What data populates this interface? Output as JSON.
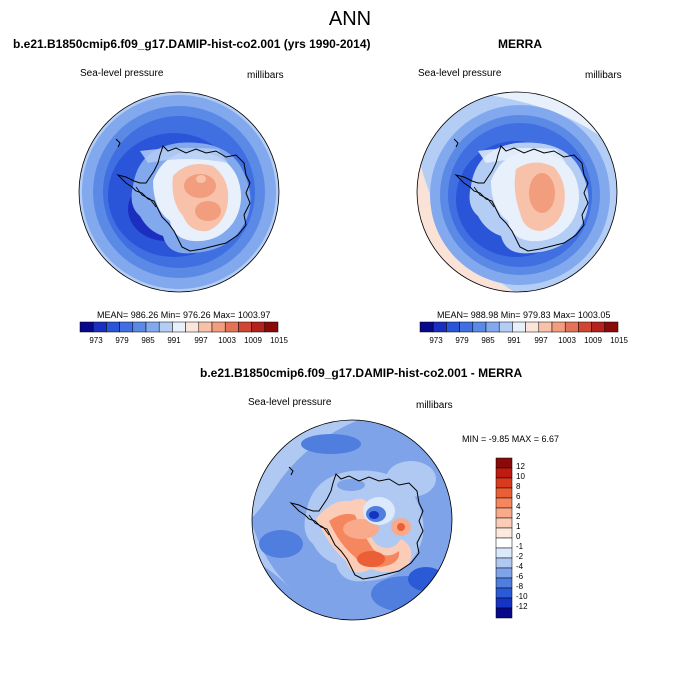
{
  "figure": {
    "title": "ANN"
  },
  "panels": [
    {
      "title": "b.e21.B1850cmip6.f09_g17.DAMIP-hist-co2.001 (yrs 1990-2014)",
      "left_label": "Sea-level pressure",
      "right_label": "millibars",
      "stats": "MEAN= 986.26  Min= 976.26  Max= 1003.97"
    },
    {
      "title": "MERRA",
      "left_label": "Sea-level pressure",
      "right_label": "millibars",
      "stats": "MEAN= 988.98  Min= 979.83  Max= 1003.05"
    },
    {
      "title": "b.e21.B1850cmip6.f09_g17.DAMIP-hist-co2.001 - MERRA",
      "left_label": "Sea-level pressure",
      "right_label": "millibars",
      "stats": "MIN =  -9.85 MAX =   6.67"
    }
  ],
  "colorbar_abs": {
    "colors": [
      "#08088a",
      "#1a2fc0",
      "#2a55d8",
      "#3f6fe0",
      "#5b8ae6",
      "#82a8ee",
      "#b4cdf5",
      "#e8f0fb",
      "#fbe5da",
      "#f8c2aa",
      "#f19d7e",
      "#e47256",
      "#cf4632",
      "#b3231c",
      "#8a0a0a"
    ],
    "tick_labels": [
      "973",
      "979",
      "985",
      "991",
      "997",
      "1003",
      "1009",
      "1015"
    ]
  },
  "colorbar_diff": {
    "colors": [
      "#8a0a0a",
      "#c01b10",
      "#dc3a1f",
      "#ec5e36",
      "#f5865e",
      "#f8aa8a",
      "#fbcdb8",
      "#fde9de",
      "#ffffff",
      "#dce9fa",
      "#b0c9f2",
      "#7ea3e8",
      "#4f7ede",
      "#2b5ad6",
      "#1534c4",
      "#08088a"
    ],
    "tick_labels": [
      "12",
      "10",
      "8",
      "6",
      "4",
      "2",
      "1",
      "0",
      "-1",
      "-2",
      "-4",
      "-6",
      "-8",
      "-10",
      "-12"
    ]
  }
}
